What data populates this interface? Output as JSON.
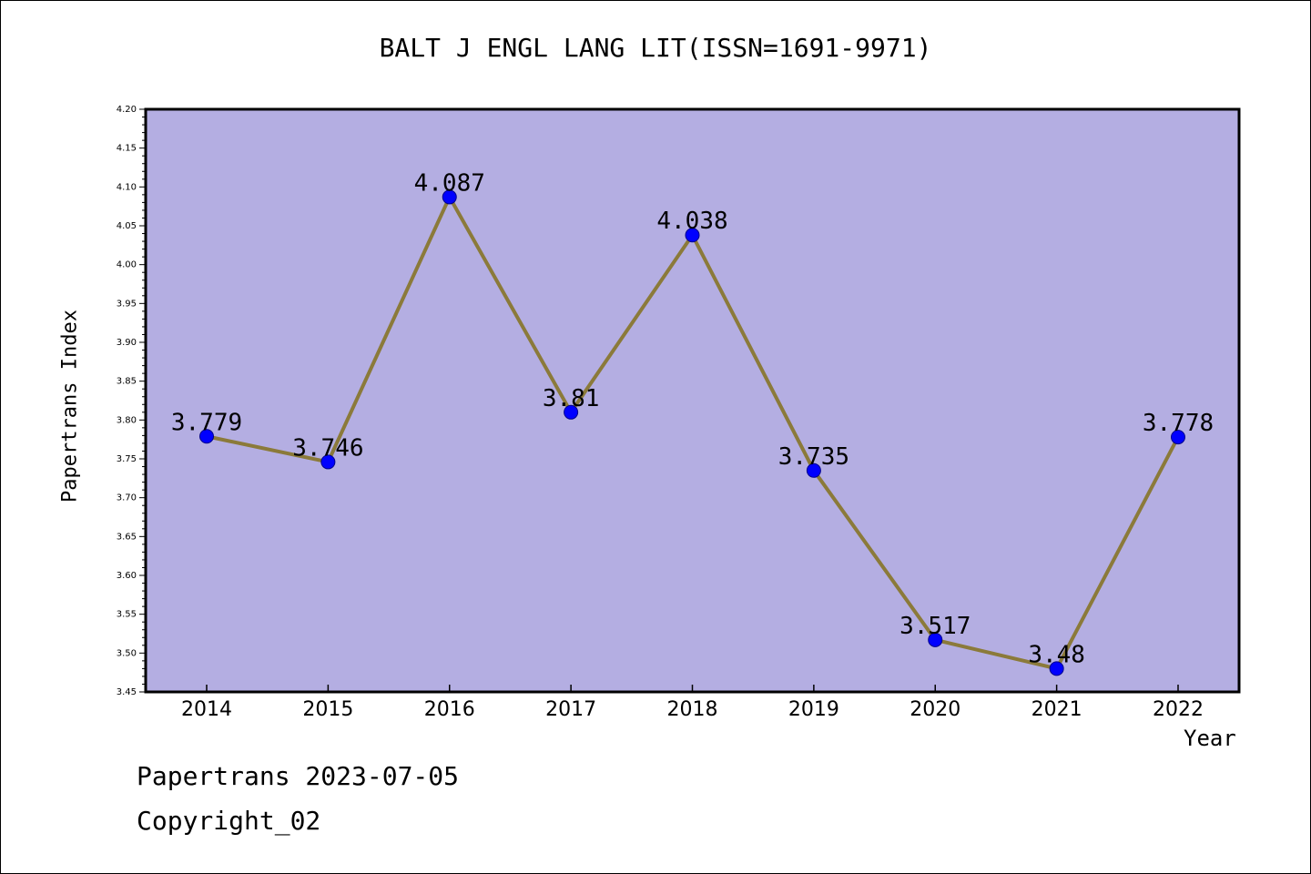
{
  "colors": {
    "plot_background": "#b4aee2",
    "line": "#8b7a3a",
    "marker": "#0000ff",
    "axis": "#000000"
  },
  "chart_data": {
    "type": "line",
    "title": "BALT J ENGL LANG LIT(ISSN=1691-9971)",
    "xlabel": "Year",
    "ylabel": "Papertrans Index",
    "ylim": [
      3.45,
      4.2
    ],
    "yticks": [
      "3.45",
      "3.50",
      "3.55",
      "3.60",
      "3.65",
      "3.70",
      "3.75",
      "3.80",
      "3.85",
      "3.90",
      "3.95",
      "4.00",
      "4.05",
      "4.10",
      "4.15",
      "4.20"
    ],
    "categories": [
      "2014",
      "2015",
      "2016",
      "2017",
      "2018",
      "2019",
      "2020",
      "2021",
      "2022"
    ],
    "values": [
      3.779,
      3.746,
      4.087,
      3.81,
      4.038,
      3.735,
      3.517,
      3.48,
      3.778
    ],
    "data_labels": [
      "3.779",
      "3.746",
      "4.087",
      "3.81",
      "4.038",
      "3.735",
      "3.517",
      "3.48",
      "3.778"
    ],
    "grid": false,
    "legend": "none"
  },
  "footer": {
    "date_text": "Papertrans 2023-07-05",
    "copyright_text": "Copyright_02"
  }
}
